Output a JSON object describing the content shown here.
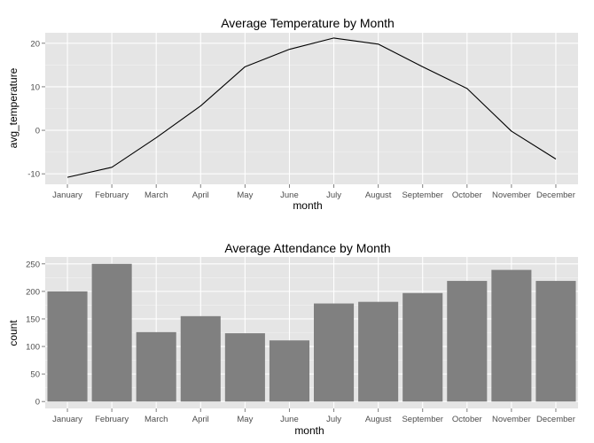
{
  "chart_data": [
    {
      "type": "line",
      "title": "Average Temperature by Month",
      "xlabel": "month",
      "ylabel": "avg_temperature",
      "categories": [
        "January",
        "February",
        "March",
        "April",
        "May",
        "June",
        "July",
        "August",
        "September",
        "October",
        "November",
        "December"
      ],
      "values": [
        -10.8,
        -8.5,
        -1.7,
        5.6,
        14.6,
        18.6,
        21.2,
        19.8,
        14.6,
        9.6,
        -0.2,
        -6.6
      ],
      "ylim": [
        -12.4,
        22.4
      ],
      "yticks": [
        -10,
        0,
        10,
        20
      ],
      "grid": true,
      "colors": {
        "panel": "#e5e5e5",
        "grid": "#ffffff",
        "line": "#000000"
      }
    },
    {
      "type": "bar",
      "title": "Average Attendance by Month",
      "xlabel": "month",
      "ylabel": "count",
      "categories": [
        "January",
        "February",
        "March",
        "April",
        "May",
        "June",
        "July",
        "August",
        "September",
        "October",
        "November",
        "December"
      ],
      "values": [
        200,
        250,
        126,
        155,
        124,
        111,
        178,
        181,
        197,
        219,
        239,
        219
      ],
      "ylim": [
        -12.5,
        262.5
      ],
      "yticks": [
        0,
        50,
        100,
        150,
        200,
        250
      ],
      "grid": true,
      "colors": {
        "panel": "#e5e5e5",
        "grid": "#ffffff",
        "bar": "#808080"
      }
    }
  ]
}
